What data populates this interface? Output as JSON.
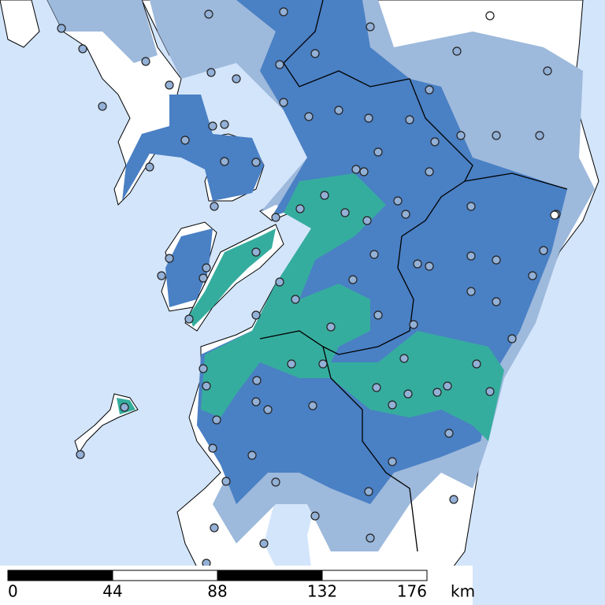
{
  "scale_bar": {
    "ticks": [
      0,
      44,
      88,
      132,
      176
    ],
    "unit": "km"
  }
}
